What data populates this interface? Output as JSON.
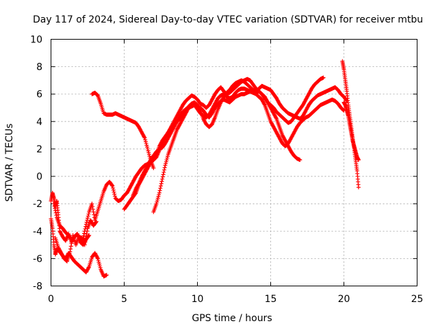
{
  "chart_data": {
    "type": "scatter",
    "title": "Day 117 of 2024, Sidereal Day-to-day VTEC variation (SDTVAR) for receiver mtbu",
    "xlabel": "GPS time / hours",
    "ylabel": "SDTVAR / TECUs",
    "xlim": [
      0,
      25
    ],
    "ylim": [
      -8,
      10
    ],
    "xticks": [
      "0",
      "5",
      "10",
      "15",
      "20",
      "25"
    ],
    "yticks": [
      "-8",
      "-6",
      "-4",
      "-2",
      "0",
      "2",
      "4",
      "6",
      "8",
      "10"
    ],
    "grid": true,
    "marker": "+",
    "color": "#ff0000",
    "series": [
      {
        "x": [
          0.0,
          0.1,
          0.2,
          0.3,
          0.4,
          0.6,
          0.8,
          1.0,
          1.2,
          1.4,
          1.6,
          1.8,
          2.0,
          2.2,
          2.4,
          2.6,
          2.8,
          3.0,
          3.2,
          3.4,
          3.6,
          3.8
        ],
        "y": [
          -3.1,
          -3.8,
          -5.0,
          -5.7,
          -5.3,
          -5.5,
          -5.8,
          -6.0,
          -5.6,
          -5.9,
          -6.2,
          -6.4,
          -6.6,
          -6.8,
          -7.0,
          -6.6,
          -5.9,
          -5.6,
          -6.0,
          -6.8,
          -7.3,
          -7.2
        ]
      },
      {
        "x": [
          0.0,
          0.1,
          0.2,
          0.3,
          0.4,
          0.5,
          0.6,
          0.8,
          1.0,
          1.2,
          1.4,
          1.6,
          1.8,
          2.0,
          2.2,
          2.4,
          2.6
        ],
        "y": [
          -1.8,
          -1.2,
          -1.6,
          -2.2,
          -1.8,
          -2.8,
          -4.0,
          -4.4,
          -4.7,
          -4.2,
          -4.8,
          -4.4,
          -4.2,
          -4.8,
          -5.0,
          -4.6,
          -4.3
        ]
      },
      {
        "x": [
          0.3,
          0.5,
          0.7,
          0.9,
          1.1,
          1.3,
          1.5,
          1.7,
          1.9,
          2.1,
          2.3,
          2.5,
          2.7,
          2.9,
          3.1
        ],
        "y": [
          -4.5,
          -5.2,
          -5.6,
          -6.0,
          -6.2,
          -5.5,
          -4.3,
          -5.0,
          -4.4,
          -4.5,
          -5.0,
          -3.8,
          -3.2,
          -3.6,
          -3.3
        ]
      },
      {
        "x": [
          0.2,
          0.4,
          0.6,
          0.8,
          1.0,
          1.2,
          1.4,
          1.6,
          1.8,
          2.0,
          2.2,
          2.4,
          2.6,
          2.8,
          3.0,
          3.2,
          3.4,
          3.6,
          3.8,
          4.0,
          4.2,
          4.4,
          4.6,
          4.8,
          5.0,
          5.2,
          5.4,
          5.6,
          5.8,
          6.0,
          6.2,
          6.4,
          6.6,
          6.8,
          7.0,
          7.2,
          7.4,
          7.6,
          7.8,
          8.0,
          8.2,
          8.4,
          8.6,
          8.8,
          9.0,
          9.2,
          9.4,
          9.6,
          9.8,
          10.0,
          10.2,
          10.4,
          10.6,
          10.8,
          11.0,
          11.2,
          11.4,
          11.6,
          11.8,
          12.0,
          12.2,
          12.4,
          12.6,
          12.8,
          13.0,
          13.2,
          13.4,
          13.6,
          13.8,
          14.0,
          14.2,
          14.4,
          14.6,
          14.8,
          15.0,
          15.2,
          15.4,
          15.6,
          15.8,
          16.0,
          16.2,
          16.4,
          16.6,
          16.8,
          17.0
        ],
        "y": [
          -2.0,
          -3.0,
          -3.6,
          -3.8,
          -4.1,
          -4.3,
          -4.6,
          -4.4,
          -4.2,
          -4.8,
          -4.5,
          -3.5,
          -2.6,
          -2.0,
          -3.2,
          -2.5,
          -1.8,
          -1.1,
          -0.6,
          -0.4,
          -0.7,
          -1.6,
          -1.8,
          -1.7,
          -1.4,
          -1.2,
          -0.8,
          -0.4,
          0.0,
          0.3,
          0.6,
          0.8,
          0.9,
          1.0,
          1.2,
          1.4,
          1.9,
          2.4,
          2.8,
          3.2,
          3.6,
          4.0,
          4.4,
          4.8,
          5.2,
          5.5,
          5.7,
          5.9,
          5.8,
          5.6,
          5.3,
          5.2,
          5.0,
          5.2,
          5.6,
          6.0,
          6.3,
          6.5,
          6.2,
          6.0,
          6.1,
          6.3,
          6.5,
          6.7,
          6.9,
          7.0,
          7.1,
          7.0,
          6.7,
          6.4,
          6.2,
          6.0,
          5.8,
          5.4,
          5.0,
          4.6,
          4.2,
          3.6,
          3.0,
          2.6,
          2.2,
          1.8,
          1.5,
          1.3,
          1.2
        ]
      },
      {
        "x": [
          2.8,
          3.0,
          3.2,
          3.4,
          3.6,
          3.8,
          4.0,
          4.2,
          4.4,
          4.6,
          4.8,
          5.0,
          5.2,
          5.4,
          5.6,
          5.8,
          6.0,
          6.2,
          6.4,
          6.6,
          6.8,
          7.0
        ],
        "y": [
          6.0,
          6.1,
          5.9,
          5.3,
          4.6,
          4.5,
          4.5,
          4.5,
          4.6,
          4.5,
          4.4,
          4.3,
          4.2,
          4.1,
          4.0,
          3.9,
          3.6,
          3.2,
          2.8,
          2.0,
          1.2,
          0.6
        ]
      },
      {
        "x": [
          5.0,
          5.2,
          5.4,
          5.6,
          5.8,
          6.0,
          6.2,
          6.4,
          6.6,
          6.8,
          7.0,
          7.2,
          7.4,
          7.6,
          7.8,
          8.0,
          8.2,
          8.4,
          8.6,
          8.8,
          9.0,
          9.2,
          9.4,
          9.6,
          9.8,
          10.0,
          10.2,
          10.4,
          10.6,
          10.8,
          11.0,
          11.2,
          11.4,
          11.6,
          11.8,
          12.0,
          12.2,
          12.4,
          12.6,
          12.8,
          13.0,
          13.2,
          13.4,
          13.6,
          13.8,
          14.0,
          14.2,
          14.4,
          14.6,
          14.8,
          15.0,
          15.2,
          15.4,
          15.6,
          15.8,
          16.0,
          16.2,
          16.4,
          16.6,
          16.8,
          17.0,
          17.2,
          17.4,
          17.6,
          17.8,
          18.0,
          18.2,
          18.4,
          18.6
        ],
        "y": [
          -2.4,
          -2.1,
          -1.8,
          -1.5,
          -1.2,
          -0.6,
          -0.2,
          0.2,
          0.6,
          1.0,
          1.2,
          1.6,
          2.2,
          2.6,
          2.9,
          3.2,
          3.5,
          3.8,
          4.0,
          4.2,
          4.5,
          4.8,
          5.1,
          5.3,
          5.2,
          4.9,
          4.6,
          4.4,
          4.3,
          4.5,
          4.9,
          5.3,
          5.7,
          5.9,
          6.0,
          5.8,
          5.7,
          5.8,
          6.1,
          6.3,
          6.4,
          6.4,
          6.3,
          6.2,
          6.1,
          6.1,
          6.2,
          6.0,
          5.7,
          5.4,
          5.2,
          5.0,
          4.7,
          4.5,
          4.3,
          4.1,
          3.9,
          4.0,
          4.3,
          4.6,
          4.9,
          5.2,
          5.6,
          6.0,
          6.4,
          6.7,
          6.9,
          7.1,
          7.2
        ]
      },
      {
        "x": [
          5.6,
          5.8,
          6.0,
          6.2,
          6.4,
          6.6,
          6.8,
          7.0,
          7.2,
          7.4,
          7.6,
          7.8,
          8.0,
          8.2,
          8.4,
          8.6,
          8.8,
          9.0,
          9.2,
          9.4,
          9.6,
          9.8,
          10.0,
          10.2,
          10.4,
          10.6,
          10.8,
          11.0,
          11.2,
          11.4,
          11.6,
          11.8,
          12.0,
          12.2,
          12.4,
          12.6,
          12.8,
          13.0,
          13.2,
          13.4,
          13.6,
          13.8,
          14.0,
          14.2,
          14.4,
          14.6,
          14.8,
          15.0,
          15.2,
          15.4,
          15.6,
          15.8,
          16.0,
          16.2,
          16.4,
          16.6,
          16.8,
          17.0,
          17.2,
          17.4,
          17.6,
          17.8,
          18.0,
          18.2,
          18.4,
          18.6,
          18.8,
          19.0,
          19.2,
          19.4,
          19.6,
          19.8,
          20.0
        ],
        "y": [
          -1.4,
          -0.9,
          -0.5,
          0.0,
          0.4,
          0.8,
          1.2,
          1.5,
          1.8,
          2.0,
          2.1,
          2.4,
          2.8,
          3.2,
          3.6,
          4.0,
          4.4,
          4.7,
          4.9,
          5.0,
          5.1,
          5.2,
          5.1,
          5.0,
          4.8,
          4.5,
          4.3,
          4.6,
          5.0,
          5.3,
          5.5,
          5.6,
          5.5,
          5.4,
          5.6,
          5.8,
          5.9,
          6.0,
          6.0,
          6.1,
          6.2,
          6.1,
          6.0,
          5.8,
          5.6,
          5.2,
          4.6,
          4.0,
          3.6,
          3.2,
          2.8,
          2.4,
          2.2,
          2.4,
          2.8,
          3.2,
          3.6,
          3.9,
          4.1,
          4.3,
          4.4,
          4.6,
          4.8,
          5.0,
          5.2,
          5.3,
          5.4,
          5.5,
          5.6,
          5.5,
          5.3,
          5.0,
          4.8
        ]
      },
      {
        "x": [
          7.0,
          7.2,
          7.4,
          7.6,
          7.8,
          8.0,
          8.2,
          8.4,
          8.6,
          8.8,
          9.0,
          9.2,
          9.4,
          9.6,
          9.8,
          10.0,
          10.2,
          10.4,
          10.6,
          10.8,
          11.0,
          11.2,
          11.4,
          11.6,
          11.8,
          12.0,
          12.2,
          12.4,
          12.6,
          12.8,
          13.0,
          13.2,
          13.4,
          13.6,
          13.8,
          14.0,
          14.2,
          14.4,
          14.6,
          14.8,
          15.0,
          15.2,
          15.4,
          15.6,
          15.8,
          16.0,
          16.2,
          16.4,
          16.6,
          16.8,
          17.0,
          17.2,
          17.4,
          17.6,
          17.8,
          18.0,
          18.2,
          18.4,
          18.6,
          18.8,
          19.0,
          19.2,
          19.4,
          19.6,
          19.8,
          20.0,
          20.2
        ],
        "y": [
          -2.6,
          -2.0,
          -1.2,
          -0.2,
          0.8,
          1.6,
          2.2,
          2.8,
          3.4,
          3.8,
          4.2,
          4.6,
          5.0,
          5.3,
          5.4,
          5.2,
          4.8,
          4.2,
          3.8,
          3.6,
          3.8,
          4.3,
          4.9,
          5.4,
          5.8,
          6.1,
          6.3,
          6.6,
          6.8,
          6.9,
          7.0,
          6.9,
          6.7,
          6.5,
          6.3,
          6.2,
          6.4,
          6.6,
          6.5,
          6.4,
          6.3,
          6.0,
          5.7,
          5.3,
          5.0,
          4.8,
          4.6,
          4.5,
          4.4,
          4.3,
          4.2,
          4.4,
          4.8,
          5.2,
          5.5,
          5.7,
          5.9,
          6.0,
          6.1,
          6.2,
          6.3,
          6.4,
          6.5,
          6.3,
          6.0,
          5.8,
          5.5
        ]
      },
      {
        "x": [
          19.9,
          20.0,
          20.1,
          20.2,
          20.3,
          20.4,
          20.5,
          20.6,
          20.7,
          20.8,
          20.9,
          21.0
        ],
        "y": [
          8.4,
          7.8,
          7.0,
          6.2,
          5.2,
          4.4,
          3.6,
          2.8,
          2.0,
          1.2,
          0.4,
          -0.8
        ]
      },
      {
        "x": [
          20.0,
          20.1,
          20.2,
          20.3,
          20.4,
          20.5,
          20.6,
          20.7,
          20.8,
          20.9,
          21.0
        ],
        "y": [
          5.4,
          5.2,
          4.8,
          4.4,
          3.8,
          3.2,
          2.6,
          2.2,
          1.8,
          1.4,
          1.2
        ]
      }
    ]
  }
}
